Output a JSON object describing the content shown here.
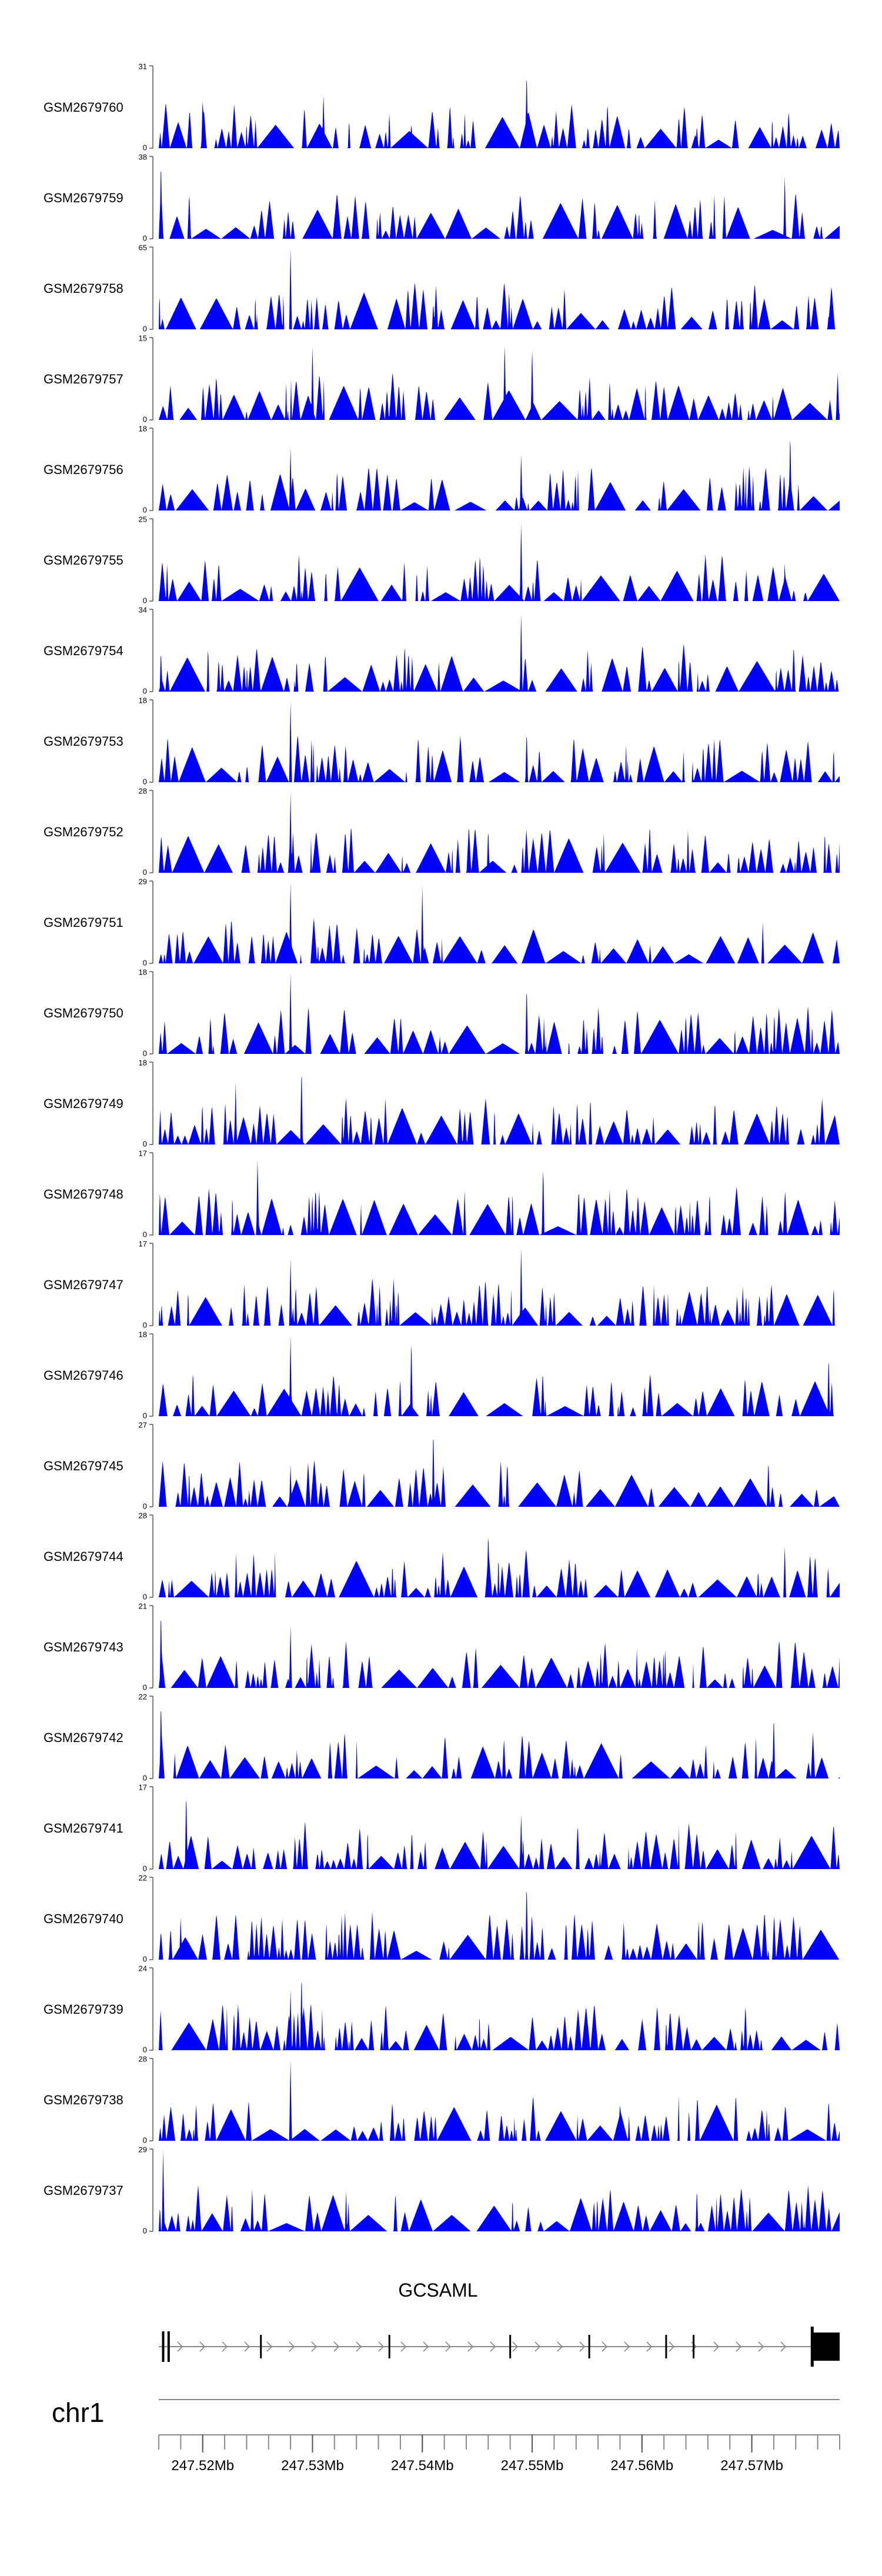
{
  "chart_data": {
    "type": "area",
    "title": "",
    "chromosome": "chr1",
    "x_unit": "bp",
    "xlim": [
      247516000,
      247578000
    ],
    "track_color": "#0000ff",
    "tracks": [
      {
        "name": "GSM2679760",
        "ymax": 31,
        "ylim": [
          0,
          31
        ],
        "seed": 760,
        "peaks": [
          [
            247520000,
            20
          ],
          [
            247531000,
            22
          ],
          [
            247537000,
            14
          ],
          [
            247539000,
            10
          ],
          [
            247549500,
            31
          ],
          [
            247558000,
            10
          ],
          [
            247565000,
            9
          ]
        ]
      },
      {
        "name": "GSM2679759",
        "ymax": 38,
        "ylim": [
          0,
          38
        ],
        "seed": 759,
        "peaks": [
          [
            247516200,
            38
          ],
          [
            247549000,
            14
          ],
          [
            247573000,
            30
          ]
        ]
      },
      {
        "name": "GSM2679758",
        "ymax": 65,
        "ylim": [
          0,
          65
        ],
        "seed": 758,
        "peaks": [
          [
            247518000,
            10
          ],
          [
            247528000,
            65
          ],
          [
            247541000,
            22
          ],
          [
            247577000,
            12
          ]
        ]
      },
      {
        "name": "GSM2679757",
        "ymax": 15,
        "ylim": [
          0,
          15
        ],
        "seed": 757,
        "peaks": [
          [
            247530000,
            14
          ],
          [
            247547500,
            15
          ],
          [
            247550000,
            14
          ]
        ]
      },
      {
        "name": "GSM2679756",
        "ymax": 18,
        "ylim": [
          0,
          18
        ],
        "seed": 756,
        "peaks": [
          [
            247528000,
            14
          ],
          [
            247549000,
            13
          ],
          [
            247573500,
            18
          ]
        ]
      },
      {
        "name": "GSM2679755",
        "ymax": 25,
        "ylim": [
          0,
          25
        ],
        "seed": 755,
        "peaks": [
          [
            247549000,
            25
          ],
          [
            247573000,
            12
          ]
        ]
      },
      {
        "name": "GSM2679754",
        "ymax": 34,
        "ylim": [
          0,
          34
        ],
        "seed": 754,
        "peaks": [
          [
            247516200,
            18
          ],
          [
            247549000,
            34
          ]
        ]
      },
      {
        "name": "GSM2679753",
        "ymax": 18,
        "ylim": [
          0,
          18
        ],
        "seed": 753,
        "peaks": [
          [
            247528000,
            18
          ],
          [
            247549500,
            12
          ]
        ]
      },
      {
        "name": "GSM2679752",
        "ymax": 28,
        "ylim": [
          0,
          28
        ],
        "seed": 752,
        "peaks": [
          [
            247528000,
            28
          ],
          [
            247546000,
            16
          ]
        ]
      },
      {
        "name": "GSM2679751",
        "ymax": 29,
        "ylim": [
          0,
          29
        ],
        "seed": 751,
        "peaks": [
          [
            247528000,
            29
          ],
          [
            247540000,
            28
          ],
          [
            247571000,
            15
          ]
        ]
      },
      {
        "name": "GSM2679750",
        "ymax": 18,
        "ylim": [
          0,
          18
        ],
        "seed": 750,
        "peaks": [
          [
            247528000,
            18
          ],
          [
            247549500,
            16
          ]
        ]
      },
      {
        "name": "GSM2679749",
        "ymax": 18,
        "ylim": [
          0,
          18
        ],
        "seed": 749,
        "peaks": [
          [
            247529000,
            18
          ],
          [
            247523000,
            14
          ]
        ]
      },
      {
        "name": "GSM2679748",
        "ymax": 17,
        "ylim": [
          0,
          17
        ],
        "seed": 748,
        "peaks": [
          [
            247525000,
            17
          ],
          [
            247551000,
            15
          ]
        ]
      },
      {
        "name": "GSM2679747",
        "ymax": 17,
        "ylim": [
          0,
          17
        ],
        "seed": 747,
        "peaks": [
          [
            247549000,
            17
          ],
          [
            247528000,
            14
          ]
        ]
      },
      {
        "name": "GSM2679746",
        "ymax": 18,
        "ylim": [
          0,
          18
        ],
        "seed": 746,
        "peaks": [
          [
            247528000,
            18
          ],
          [
            247539000,
            18
          ],
          [
            247577000,
            14
          ]
        ]
      },
      {
        "name": "GSM2679745",
        "ymax": 27,
        "ylim": [
          0,
          27
        ],
        "seed": 745,
        "peaks": [
          [
            247541000,
            27
          ],
          [
            247528000,
            14
          ]
        ]
      },
      {
        "name": "GSM2679744",
        "ymax": 28,
        "ylim": [
          0,
          28
        ],
        "seed": 744,
        "peaks": [
          [
            247546000,
            24
          ],
          [
            247573000,
            18
          ]
        ]
      },
      {
        "name": "GSM2679743",
        "ymax": 21,
        "ylim": [
          0,
          21
        ],
        "seed": 743,
        "peaks": [
          [
            247516200,
            21
          ],
          [
            247528000,
            16
          ]
        ]
      },
      {
        "name": "GSM2679742",
        "ymax": 22,
        "ylim": [
          0,
          22
        ],
        "seed": 742,
        "peaks": [
          [
            247516200,
            22
          ],
          [
            247572000,
            18
          ]
        ]
      },
      {
        "name": "GSM2679741",
        "ymax": 17,
        "ylim": [
          0,
          17
        ],
        "seed": 741,
        "peaks": [
          [
            247518500,
            17
          ],
          [
            247549000,
            12
          ]
        ]
      },
      {
        "name": "GSM2679740",
        "ymax": 22,
        "ylim": [
          0,
          22
        ],
        "seed": 740,
        "peaks": [
          [
            247549500,
            22
          ],
          [
            247518000,
            12
          ]
        ]
      },
      {
        "name": "GSM2679739",
        "ymax": 24,
        "ylim": [
          0,
          24
        ],
        "seed": 739,
        "peaks": [
          [
            247529000,
            24
          ],
          [
            247528000,
            18
          ]
        ]
      },
      {
        "name": "GSM2679738",
        "ymax": 28,
        "ylim": [
          0,
          28
        ],
        "seed": 738,
        "peaks": [
          [
            247528000,
            28
          ],
          [
            247558000,
            14
          ]
        ]
      },
      {
        "name": "GSM2679737",
        "ymax": 29,
        "ylim": [
          0,
          29
        ],
        "seed": 737,
        "peaks": [
          [
            247516400,
            29
          ],
          [
            247565000,
            16
          ]
        ]
      }
    ],
    "gene": {
      "name": "GCSAML",
      "start": 247516000,
      "end": 247578000,
      "strand": "+",
      "exons": [
        247516400,
        247516900,
        247525300,
        247537000,
        247548000,
        247555200,
        247562200,
        247564700
      ],
      "utr_end": [
        247575500,
        247578000
      ]
    },
    "axis_label": "chr1",
    "x_ticks": [
      247516000,
      247518000,
      247520000,
      247522000,
      247524000,
      247526000,
      247528000,
      247530000,
      247532000,
      247534000,
      247536000,
      247538000,
      247540000,
      247542000,
      247544000,
      247546000,
      247548000,
      247550000,
      247552000,
      247554000,
      247556000,
      247558000,
      247560000,
      247562000,
      247564000,
      247566000,
      247568000,
      247570000,
      247572000,
      247574000,
      247576000,
      247578000
    ],
    "x_tick_labels": [
      {
        "value": 247520000,
        "label": "247.52Mb"
      },
      {
        "value": 247530000,
        "label": "247.53Mb"
      },
      {
        "value": 247540000,
        "label": "247.54Mb"
      },
      {
        "value": 247550000,
        "label": "247.55Mb"
      },
      {
        "value": 247560000,
        "label": "247.56Mb"
      },
      {
        "value": 247570000,
        "label": "247.57Mb"
      }
    ]
  }
}
